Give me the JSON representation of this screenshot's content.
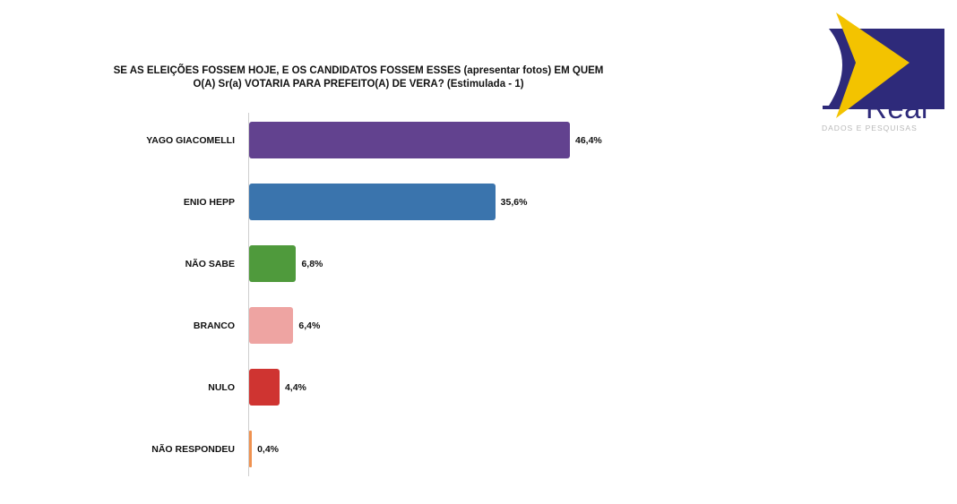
{
  "chart_data": {
    "type": "bar",
    "orientation": "horizontal",
    "title": "SE AS ELEIÇÕES FOSSEM HOJE, E OS CANDIDATOS FOSSEM ESSES (apresentar fotos) EM QUEM O(A) Sr(a) VOTARIA PARA PREFEITO(A) DE VERA? (Estimulada - 1)",
    "categories": [
      "YAGO GIACOMELLI",
      "ENIO HEPP",
      "NÃO SABE",
      "BRANCO",
      "NULO",
      "NÃO RESPONDEU"
    ],
    "values": [
      46.4,
      35.6,
      6.8,
      6.4,
      4.4,
      0.4
    ],
    "value_labels": [
      "46,4%",
      "35,6%",
      "6,8%",
      "6,4%",
      "4,4%",
      "0,4%"
    ],
    "colors": [
      "#62428f",
      "#3a74ad",
      "#4f9a3c",
      "#eea4a2",
      "#cf3431",
      "#ef9250"
    ],
    "unit": "%",
    "grid": false
  },
  "logo": {
    "word": "Real",
    "subtitle": "DADOS E PESQUISAS",
    "colors": {
      "navy": "#2e2a7a",
      "yellow": "#f3c300"
    }
  }
}
